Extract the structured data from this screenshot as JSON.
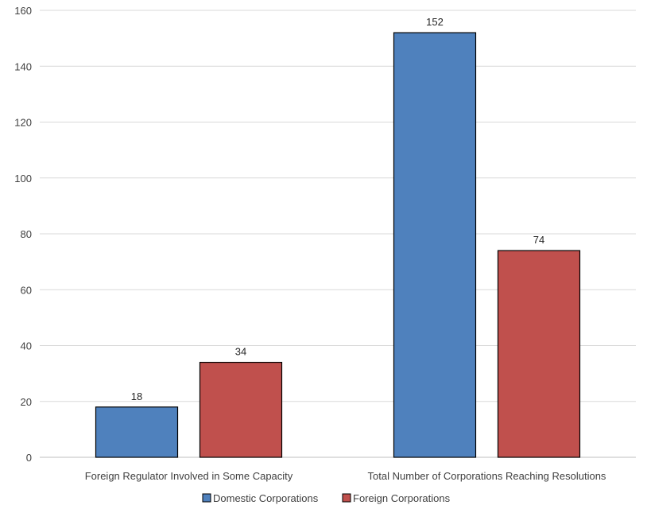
{
  "chart_data": {
    "type": "bar",
    "categories": [
      "Foreign Regulator Involved in Some Capacity",
      "Total Number of Corporations Reaching Resolutions"
    ],
    "series": [
      {
        "name": "Domestic Corporations",
        "values": [
          18,
          152
        ],
        "color": "#4f81bd"
      },
      {
        "name": "Foreign Corporations",
        "values": [
          34,
          74
        ],
        "color": "#c0504d"
      }
    ],
    "ylim": [
      0,
      160
    ],
    "yticks": [
      0,
      20,
      40,
      60,
      80,
      100,
      120,
      140,
      160
    ],
    "grid": true,
    "legend": "bottom",
    "title": "",
    "xlabel": "",
    "ylabel": ""
  }
}
